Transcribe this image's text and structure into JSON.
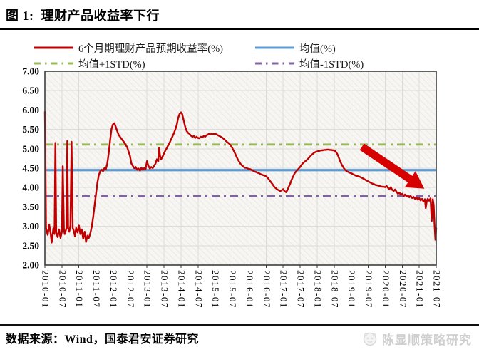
{
  "header": {
    "figure_title": "图 1:  理财产品收益率下行"
  },
  "footer": {
    "source": "数据来源：Wind，国泰君安证券研究",
    "watermark": "陈显顺策略研究",
    "watermark_logo": "panda-face-icon"
  },
  "chart_data": {
    "type": "line",
    "title": "理财产品收益率下行",
    "ylim": [
      2.0,
      7.0
    ],
    "ytick_step": 0.5,
    "y_tick_labels": [
      "7.00",
      "6.50",
      "6.00",
      "5.50",
      "5.00",
      "4.50",
      "4.00",
      "3.50",
      "3.00",
      "2.50",
      "2.00"
    ],
    "x_tick_labels": [
      "2010-01",
      "2010-07",
      "2011-01",
      "2011-07",
      "2012-01",
      "2012-07",
      "2013-01",
      "2013-07",
      "2014-01",
      "2014-07",
      "2015-01",
      "2015-07",
      "2016-01",
      "2016-07",
      "2017-01",
      "2017-07",
      "2018-01",
      "2018-07",
      "2019-01",
      "2019-07",
      "2020-01",
      "2020-07",
      "2021-01",
      "2021-07"
    ],
    "x_total_months": 138,
    "months_per_tick": 6,
    "grid": "both",
    "legend_position": "top",
    "plot_bg": "#f7f6f3",
    "grid_color": "#dcdcdc",
    "series": [
      {
        "name": "6个月期理财产品预期收益率(%)",
        "color": "#c00000",
        "style": "solid",
        "points": [
          [
            0,
            5.95
          ],
          [
            0.2,
            4.6
          ],
          [
            0.4,
            2.95
          ],
          [
            1,
            2.78
          ],
          [
            1.5,
            3.05
          ],
          [
            2,
            2.82
          ],
          [
            2.4,
            2.58
          ],
          [
            3,
            2.95
          ],
          [
            3.4,
            2.8
          ],
          [
            3.7,
            5.15
          ],
          [
            4,
            2.85
          ],
          [
            4.5,
            2.72
          ],
          [
            5,
            2.92
          ],
          [
            5.5,
            2.7
          ],
          [
            6,
            2.86
          ],
          [
            6.3,
            4.55
          ],
          [
            6.7,
            2.92
          ],
          [
            7,
            2.8
          ],
          [
            7.6,
            2.95
          ],
          [
            7.9,
            5.2
          ],
          [
            8.2,
            2.95
          ],
          [
            8.6,
            2.86
          ],
          [
            9,
            3.02
          ],
          [
            9.4,
            5.18
          ],
          [
            9.8,
            2.96
          ],
          [
            10.2,
            2.88
          ],
          [
            10.6,
            2.74
          ],
          [
            11,
            2.96
          ],
          [
            11.5,
            2.84
          ],
          [
            12,
            3.02
          ],
          [
            12.5,
            2.8
          ],
          [
            13,
            2.92
          ],
          [
            13.5,
            2.68
          ],
          [
            14,
            2.86
          ],
          [
            14.5,
            2.6
          ],
          [
            15,
            2.76
          ],
          [
            15.5,
            2.7
          ],
          [
            16,
            2.82
          ],
          [
            16.5,
            2.98
          ],
          [
            17,
            3.22
          ],
          [
            17.5,
            3.52
          ],
          [
            18,
            3.82
          ],
          [
            18.5,
            4.12
          ],
          [
            19,
            4.32
          ],
          [
            19.5,
            4.42
          ],
          [
            20,
            4.46
          ],
          [
            20.5,
            4.42
          ],
          [
            21,
            4.5
          ],
          [
            21.5,
            4.47
          ],
          [
            22,
            4.62
          ],
          [
            22.5,
            4.88
          ],
          [
            23,
            5.22
          ],
          [
            23.5,
            5.52
          ],
          [
            24,
            5.63
          ],
          [
            24.5,
            5.66
          ],
          [
            25,
            5.56
          ],
          [
            25.5,
            5.46
          ],
          [
            26,
            5.36
          ],
          [
            27,
            5.26
          ],
          [
            28,
            5.16
          ],
          [
            29,
            5.04
          ],
          [
            30,
            4.82
          ],
          [
            30.5,
            4.62
          ],
          [
            31,
            4.56
          ],
          [
            31.5,
            4.5
          ],
          [
            32,
            4.53
          ],
          [
            32.5,
            4.46
          ],
          [
            33,
            4.49
          ],
          [
            33.5,
            4.44
          ],
          [
            34,
            4.51
          ],
          [
            34.5,
            4.46
          ],
          [
            35,
            4.5
          ],
          [
            35.5,
            4.47
          ],
          [
            36,
            4.68
          ],
          [
            36.5,
            4.56
          ],
          [
            37,
            4.49
          ],
          [
            37.5,
            4.53
          ],
          [
            38,
            4.5
          ],
          [
            38.5,
            4.56
          ],
          [
            39,
            4.62
          ],
          [
            39.5,
            4.73
          ],
          [
            40,
            4.68
          ],
          [
            40.3,
            5.03
          ],
          [
            40.6,
            4.82
          ],
          [
            41,
            4.73
          ],
          [
            41.5,
            4.8
          ],
          [
            42,
            4.88
          ],
          [
            42.5,
            4.96
          ],
          [
            43,
            5.02
          ],
          [
            43.5,
            5.1
          ],
          [
            44,
            5.16
          ],
          [
            44.5,
            5.24
          ],
          [
            45,
            5.32
          ],
          [
            45.5,
            5.4
          ],
          [
            46,
            5.5
          ],
          [
            46.5,
            5.62
          ],
          [
            47,
            5.8
          ],
          [
            47.5,
            5.9
          ],
          [
            48,
            5.94
          ],
          [
            48.4,
            5.9
          ],
          [
            49,
            5.72
          ],
          [
            49.5,
            5.56
          ],
          [
            50,
            5.46
          ],
          [
            50.5,
            5.41
          ],
          [
            51,
            5.38
          ],
          [
            51.5,
            5.34
          ],
          [
            52,
            5.31
          ],
          [
            52.5,
            5.33
          ],
          [
            53,
            5.28
          ],
          [
            53.5,
            5.31
          ],
          [
            54,
            5.28
          ],
          [
            54.5,
            5.27
          ],
          [
            55,
            5.31
          ],
          [
            55.5,
            5.29
          ],
          [
            56,
            5.33
          ],
          [
            56.5,
            5.31
          ],
          [
            57,
            5.35
          ],
          [
            57.5,
            5.37
          ],
          [
            58,
            5.39
          ],
          [
            58.5,
            5.37
          ],
          [
            59,
            5.39
          ],
          [
            59.5,
            5.38
          ],
          [
            60,
            5.39
          ],
          [
            60.5,
            5.37
          ],
          [
            61,
            5.35
          ],
          [
            61.5,
            5.33
          ],
          [
            62,
            5.31
          ],
          [
            62.5,
            5.29
          ],
          [
            63,
            5.26
          ],
          [
            63.5,
            5.23
          ],
          [
            64,
            5.19
          ],
          [
            64.5,
            5.16
          ],
          [
            65,
            5.13
          ],
          [
            65.5,
            5.09
          ],
          [
            66,
            5.03
          ],
          [
            66.5,
            4.96
          ],
          [
            67,
            4.89
          ],
          [
            67.5,
            4.81
          ],
          [
            68,
            4.73
          ],
          [
            68.5,
            4.67
          ],
          [
            69,
            4.61
          ],
          [
            69.5,
            4.57
          ],
          [
            70,
            4.54
          ],
          [
            70.5,
            4.51
          ],
          [
            71,
            4.51
          ],
          [
            71.5,
            4.49
          ],
          [
            72,
            4.48
          ],
          [
            72.5,
            4.47
          ],
          [
            73,
            4.45
          ],
          [
            73.5,
            4.43
          ],
          [
            74,
            4.41
          ],
          [
            74.5,
            4.4
          ],
          [
            75,
            4.38
          ],
          [
            75.5,
            4.37
          ],
          [
            76,
            4.35
          ],
          [
            76.5,
            4.33
          ],
          [
            77,
            4.32
          ],
          [
            77.5,
            4.31
          ],
          [
            78,
            4.29
          ],
          [
            78.5,
            4.26
          ],
          [
            79,
            4.21
          ],
          [
            79.5,
            4.16
          ],
          [
            80,
            4.11
          ],
          [
            80.5,
            4.06
          ],
          [
            81,
            4.01
          ],
          [
            81.5,
            3.98
          ],
          [
            82,
            3.95
          ],
          [
            82.5,
            3.93
          ],
          [
            83,
            3.91
          ],
          [
            83.5,
            3.93
          ],
          [
            84,
            3.96
          ],
          [
            84.5,
            3.91
          ],
          [
            85,
            3.88
          ],
          [
            85.5,
            3.93
          ],
          [
            86,
            4.02
          ],
          [
            86.5,
            4.1
          ],
          [
            87,
            4.2
          ],
          [
            87.5,
            4.28
          ],
          [
            88,
            4.36
          ],
          [
            88.5,
            4.41
          ],
          [
            89,
            4.45
          ],
          [
            89.5,
            4.49
          ],
          [
            90,
            4.53
          ],
          [
            90.5,
            4.58
          ],
          [
            91,
            4.63
          ],
          [
            91.5,
            4.66
          ],
          [
            92,
            4.69
          ],
          [
            92.5,
            4.72
          ],
          [
            93,
            4.76
          ],
          [
            93.5,
            4.8
          ],
          [
            94,
            4.84
          ],
          [
            94.5,
            4.87
          ],
          [
            95,
            4.9
          ],
          [
            95.5,
            4.92
          ],
          [
            96,
            4.93
          ],
          [
            96.5,
            4.94
          ],
          [
            97,
            4.95
          ],
          [
            97.5,
            4.96
          ],
          [
            98,
            4.96
          ],
          [
            98.5,
            4.97
          ],
          [
            99,
            4.97
          ],
          [
            99.5,
            4.98
          ],
          [
            100,
            4.98
          ],
          [
            100.5,
            4.97
          ],
          [
            101,
            4.97
          ],
          [
            101.5,
            4.96
          ],
          [
            102,
            4.96
          ],
          [
            102.5,
            4.93
          ],
          [
            103,
            4.88
          ],
          [
            103.5,
            4.8
          ],
          [
            104,
            4.7
          ],
          [
            104.5,
            4.62
          ],
          [
            105,
            4.55
          ],
          [
            105.5,
            4.49
          ],
          [
            106,
            4.45
          ],
          [
            106.5,
            4.42
          ],
          [
            107,
            4.4
          ],
          [
            107.5,
            4.38
          ],
          [
            108,
            4.37
          ],
          [
            108.5,
            4.35
          ],
          [
            109,
            4.33
          ],
          [
            109.5,
            4.31
          ],
          [
            110,
            4.3
          ],
          [
            110.5,
            4.29
          ],
          [
            111,
            4.28
          ],
          [
            111.5,
            4.26
          ],
          [
            112,
            4.24
          ],
          [
            112.5,
            4.22
          ],
          [
            113,
            4.2
          ],
          [
            113.5,
            4.18
          ],
          [
            114,
            4.16
          ],
          [
            114.5,
            4.14
          ],
          [
            115,
            4.12
          ],
          [
            115.5,
            4.1
          ],
          [
            116,
            4.09
          ],
          [
            116.5,
            4.07
          ],
          [
            117,
            4.06
          ],
          [
            117.5,
            4.05
          ],
          [
            118,
            4.04
          ],
          [
            118.5,
            4.03
          ],
          [
            119,
            4.02
          ],
          [
            119.5,
            4.02
          ],
          [
            120,
            4.01
          ],
          [
            120.5,
            4.04
          ],
          [
            121,
            3.99
          ],
          [
            121.5,
            3.96
          ],
          [
            122,
            4.01
          ],
          [
            122.5,
            3.94
          ],
          [
            123,
            3.91
          ],
          [
            123.5,
            3.95
          ],
          [
            124,
            3.89
          ],
          [
            124.5,
            3.84
          ],
          [
            125,
            3.87
          ],
          [
            125.5,
            3.81
          ],
          [
            126,
            3.84
          ],
          [
            126.5,
            3.79
          ],
          [
            127,
            3.82
          ],
          [
            127.5,
            3.77
          ],
          [
            128,
            3.8
          ],
          [
            128.5,
            3.75
          ],
          [
            129,
            3.78
          ],
          [
            129.5,
            3.73
          ],
          [
            130,
            3.76
          ],
          [
            130.5,
            3.71
          ],
          [
            131,
            3.75
          ],
          [
            131.5,
            3.69
          ],
          [
            132,
            3.73
          ],
          [
            132.5,
            3.67
          ],
          [
            133,
            3.71
          ],
          [
            133.5,
            3.64
          ],
          [
            134,
            3.7
          ],
          [
            134.3,
            3.47
          ],
          [
            134.7,
            3.67
          ],
          [
            135,
            3.71
          ],
          [
            135.5,
            3.66
          ],
          [
            136,
            3.72
          ],
          [
            136.4,
            3.14
          ],
          [
            136.8,
            3.7
          ],
          [
            137.1,
            3.55
          ],
          [
            137.4,
            3.05
          ],
          [
            137.7,
            2.65
          ],
          [
            138,
            2.95
          ]
        ]
      },
      {
        "name": "均值(%)",
        "color": "#5b9bd5",
        "style": "solid",
        "value": 4.45
      },
      {
        "name": "均值+1STD(%)",
        "color": "#9bbb59",
        "style": "dashdot",
        "value": 5.11
      },
      {
        "name": "均值-1STD(%)",
        "color": "#8064a2",
        "style": "dashdot",
        "value": 3.78
      }
    ],
    "annotation": {
      "type": "arrow-down-right",
      "color": "#d60000",
      "from_x_month": 111.8,
      "from_y": 5.05,
      "to_x_month": 133.8,
      "to_y": 3.97
    }
  }
}
